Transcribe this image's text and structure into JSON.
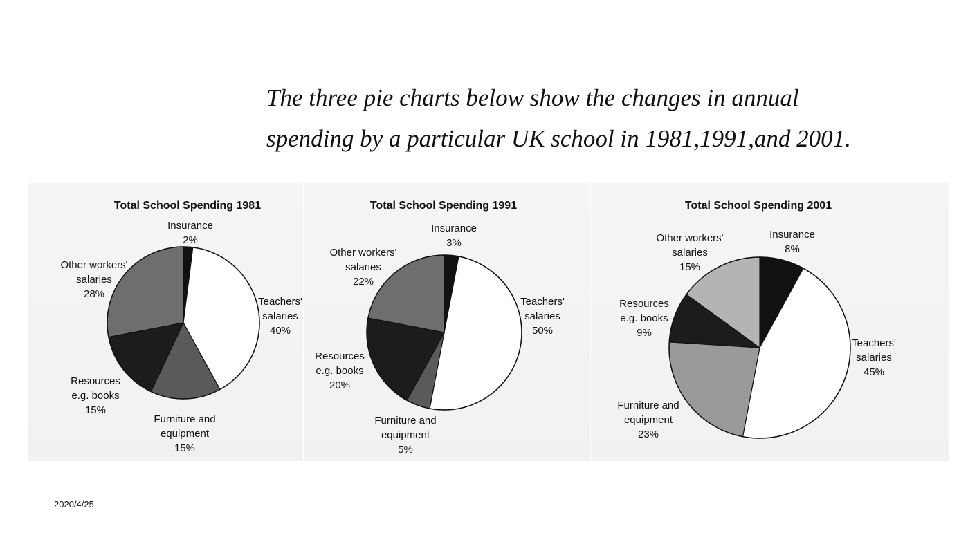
{
  "heading": {
    "line1": "The three pie charts below show the changes in annual",
    "line2": "spending by a particular UK school in 1981,1991,and 2001."
  },
  "footer_date": "2020/4/25",
  "colors": {
    "insurance": "#111111",
    "teachers": "#ffffff",
    "furniture": "#5a5a5a",
    "resources": "#1c1c1c",
    "other_workers": "#6e6e6e",
    "other_workers_2001": "#b4b4b4",
    "furniture_2001": "#9a9a9a"
  },
  "chart_data": [
    {
      "type": "pie",
      "title": "Total School Spending 1981",
      "slices": [
        {
          "key": "insurance",
          "label": [
            "Insurance",
            "2%"
          ],
          "value": 2
        },
        {
          "key": "teachers",
          "label": [
            "Teachers'",
            "salaries",
            "40%"
          ],
          "value": 40
        },
        {
          "key": "furniture",
          "label": [
            "Furniture and",
            "equipment",
            "15%"
          ],
          "value": 15
        },
        {
          "key": "resources",
          "label": [
            "Resources",
            "e.g. books",
            "15%"
          ],
          "value": 15
        },
        {
          "key": "other_workers",
          "label": [
            "Other workers'",
            "salaries",
            "28%"
          ],
          "value": 28
        }
      ]
    },
    {
      "type": "pie",
      "title": "Total School Spending 1991",
      "slices": [
        {
          "key": "insurance",
          "label": [
            "Insurance",
            "3%"
          ],
          "value": 3
        },
        {
          "key": "teachers",
          "label": [
            "Teachers'",
            "salaries",
            "50%"
          ],
          "value": 50
        },
        {
          "key": "furniture",
          "label": [
            "Furniture and",
            "equipment",
            "5%"
          ],
          "value": 5
        },
        {
          "key": "resources",
          "label": [
            "Resources",
            "e.g. books",
            "20%"
          ],
          "value": 20
        },
        {
          "key": "other_workers",
          "label": [
            "Other workers'",
            "salaries",
            "22%"
          ],
          "value": 22
        }
      ]
    },
    {
      "type": "pie",
      "title": "Total School Spending 2001",
      "slices": [
        {
          "key": "insurance",
          "label": [
            "Insurance",
            "8%"
          ],
          "value": 8
        },
        {
          "key": "teachers",
          "label": [
            "Teachers'",
            "salaries",
            "45%"
          ],
          "value": 45
        },
        {
          "key": "furniture",
          "label": [
            "Furniture and",
            "equipment",
            "23%"
          ],
          "value": 23
        },
        {
          "key": "resources",
          "label": [
            "Resources",
            "e.g. books",
            "9%"
          ],
          "value": 9
        },
        {
          "key": "other_workers",
          "label": [
            "Other workers'",
            "salaries",
            "15%"
          ],
          "value": 15
        }
      ]
    }
  ]
}
